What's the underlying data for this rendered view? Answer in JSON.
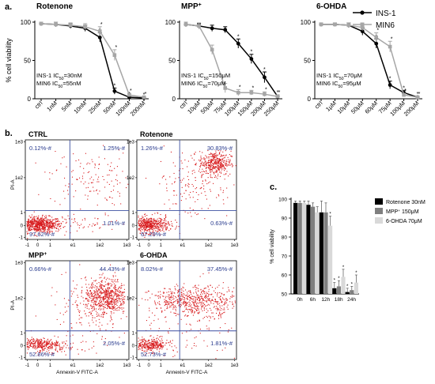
{
  "figure": {
    "panel_a_label": "a.",
    "panel_b_label": "b.",
    "panel_c_label": "c.",
    "legend_a": {
      "ins1": "INS-1",
      "min6": "MIN6"
    },
    "colors": {
      "ins1": "#000000",
      "min6": "#a6a6a6",
      "dots": "#d7191c",
      "gate": "#3b4fa0",
      "gate_text": "#2b3d8f"
    }
  },
  "chart_data": [
    {
      "id": "rotenone_curve",
      "type": "line",
      "title": "Rotenone",
      "ylabel": "% cell viability",
      "ylim": [
        0,
        100
      ],
      "yticks": [
        "0",
        "50",
        "100"
      ],
      "x": [
        "ctrl",
        "1nM",
        "5nM",
        "10nM",
        "25nM",
        "50nM",
        "100nM",
        "200nM"
      ],
      "series": [
        {
          "name": "INS-1",
          "values": [
            98,
            97,
            95,
            92,
            80,
            10,
            2,
            1
          ],
          "errors": [
            2,
            3,
            3,
            4,
            6,
            4,
            1,
            1
          ]
        },
        {
          "name": "MIN6",
          "values": [
            98,
            97,
            96,
            94,
            88,
            57,
            5,
            2
          ],
          "errors": [
            2,
            3,
            3,
            4,
            6,
            7,
            2,
            1
          ]
        }
      ],
      "annotations": [
        "INS-1 IC50=30nM",
        "MIN6 IC50=55nM"
      ]
    },
    {
      "id": "mpp_curve",
      "type": "line",
      "title": "MPP+",
      "ylim": [
        0,
        100
      ],
      "yticks": [
        "0",
        "50",
        "100"
      ],
      "x": [
        "ctrl",
        "10μM",
        "50μM",
        "75μM",
        "100μM",
        "150μM",
        "200μM",
        "250μM"
      ],
      "series": [
        {
          "name": "INS-1",
          "values": [
            97,
            95,
            92,
            90,
            72,
            52,
            28,
            3
          ],
          "errors": [
            3,
            3,
            4,
            4,
            6,
            6,
            7,
            2
          ]
        },
        {
          "name": "MIN6",
          "values": [
            97,
            95,
            64,
            14,
            8,
            8,
            6,
            3
          ],
          "errors": [
            3,
            4,
            6,
            6,
            4,
            3,
            3,
            2
          ]
        }
      ],
      "annotations": [
        "INS-1 IC50=150μM",
        "MIN6 IC50=70μM"
      ]
    },
    {
      "id": "ohda_curve",
      "type": "line",
      "title": "6-OHDA",
      "ylim": [
        0,
        100
      ],
      "yticks": [
        "0",
        "50",
        "100"
      ],
      "x": [
        "ctrl",
        "1μM",
        "10μM",
        "50μM",
        "60μM",
        "75μM",
        "100μM",
        "200μM"
      ],
      "series": [
        {
          "name": "INS-1",
          "values": [
            97,
            97,
            96,
            88,
            72,
            18,
            8,
            2
          ],
          "errors": [
            2,
            2,
            3,
            5,
            6,
            5,
            3,
            1
          ]
        },
        {
          "name": "MIN6",
          "values": [
            97,
            97,
            96,
            93,
            80,
            68,
            5,
            2
          ],
          "errors": [
            2,
            2,
            3,
            4,
            6,
            7,
            2,
            1
          ]
        }
      ],
      "annotations": [
        "INS-1 IC50=70μM",
        "MIN6 IC50=95μM"
      ]
    },
    {
      "id": "flow_ctrl",
      "type": "scatter",
      "title": "CTRL",
      "ylabel": "PI-A",
      "xticks": [
        "-1",
        "0",
        "1",
        "e1",
        "1e2",
        "1e3"
      ],
      "yticks": [
        "-1",
        "0",
        "1",
        "1e2",
        "1e3"
      ],
      "quadrants": {
        "upper_left": "0.12%-#",
        "upper_right": "1.25%-#",
        "lower_left": "97.62%-#",
        "lower_right": "1.01%-#"
      }
    },
    {
      "id": "flow_rotenone",
      "type": "scatter",
      "title": "Rotenone",
      "xticks": [
        "-1",
        "0",
        "1",
        "e1",
        "1e2",
        "1e3"
      ],
      "yticks": [
        "-1",
        "0",
        "1",
        "1e2",
        "1e3"
      ],
      "quadrants": {
        "upper_left": "1.26%-#",
        "upper_right": "30.83%-#",
        "lower_left": "67.29%-#",
        "lower_right": "0.63%-#"
      }
    },
    {
      "id": "flow_mpp",
      "type": "scatter",
      "title": "MPP+",
      "ylabel": "PI-A",
      "xlabel": "Annexin-V  FITC-A",
      "xticks": [
        "-1",
        "0",
        "1",
        "e1",
        "1e2",
        "1e3"
      ],
      "yticks": [
        "-1",
        "0",
        "1",
        "1e2",
        "1e3"
      ],
      "quadrants": {
        "upper_left": "0.66%-#",
        "upper_right": "44.43%-#",
        "lower_left": "52.86%-#",
        "lower_right": "2.05%-#"
      }
    },
    {
      "id": "flow_ohda",
      "type": "scatter",
      "title": "6-OHDA",
      "xlabel": "Annexin-V  FITC-A",
      "xticks": [
        "-1",
        "0",
        "1",
        "e1",
        "1e2",
        "1e3"
      ],
      "yticks": [
        "-1",
        "0",
        "1",
        "1e2",
        "1e3"
      ],
      "quadrants": {
        "upper_left": "8.02%-#",
        "upper_right": "37.45%-#",
        "lower_left": "52.73%-#",
        "lower_right": "1.81%-#"
      }
    },
    {
      "id": "timecourse_bar",
      "type": "bar",
      "ylabel": "% cell viability",
      "ylim": [
        50,
        100
      ],
      "yticks": [
        "50",
        "60",
        "70",
        "80",
        "90",
        "100"
      ],
      "categories": [
        "0h",
        "6h",
        "12h",
        "18h",
        "24h"
      ],
      "series": [
        {
          "name": "Rotenone 30nM",
          "color": "#000000",
          "values": [
            98,
            97,
            93,
            53,
            51
          ],
          "errors": [
            1,
            2,
            6,
            3,
            2
          ]
        },
        {
          "name": "MPP+ 150μM",
          "color": "#7f7f7f",
          "values": [
            98,
            96,
            93,
            54,
            52
          ],
          "errors": [
            1,
            2,
            5,
            3,
            2
          ]
        },
        {
          "name": "6-OHDA 70μM",
          "color": "#d9d9d9",
          "values": [
            98,
            93,
            86,
            59,
            56
          ],
          "errors": [
            1,
            3,
            5,
            4,
            4
          ]
        }
      ]
    }
  ]
}
